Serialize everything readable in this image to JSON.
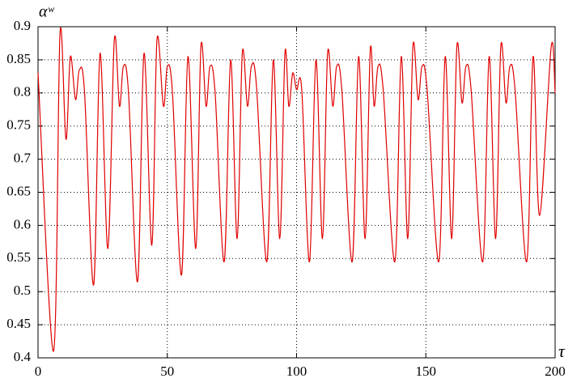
{
  "chart_data": {
    "type": "line",
    "x_label": "τ",
    "y_label": "αʷ",
    "xlim": [
      0,
      200
    ],
    "ylim": [
      0.4,
      0.9
    ],
    "xticks": [
      0,
      50,
      100,
      150,
      200
    ],
    "yticks": [
      0.4,
      0.45,
      0.5,
      0.55,
      0.6,
      0.65,
      0.7,
      0.75,
      0.8,
      0.85,
      0.9
    ],
    "grid": true,
    "x": [
      0,
      6,
      8.5,
      10.8,
      12.5,
      14.5,
      16,
      18,
      21.5,
      24,
      27,
      29.5,
      31.5,
      33,
      35,
      38.5,
      41,
      44,
      46,
      48.5,
      50,
      52,
      55.5,
      58,
      61,
      63,
      65,
      66.5,
      68.5,
      72,
      74.5,
      77,
      79,
      81,
      82.5,
      84.5,
      88.5,
      91,
      93.5,
      95.5,
      97,
      98.5,
      100,
      102,
      105,
      107.5,
      110,
      112,
      114,
      115.5,
      117.5,
      121.5,
      124,
      126.5,
      128.5,
      130,
      131.5,
      133.5,
      138,
      140.5,
      143,
      145,
      147,
      148.5,
      150.5,
      155,
      157.5,
      160,
      162,
      164,
      165.5,
      167.5,
      172,
      174.5,
      177,
      179,
      181,
      182.5,
      184.5,
      189,
      191.5,
      194,
      198.5,
      200
    ],
    "series": [
      {
        "name": "alpha-w",
        "color": "#e00000",
        "values": [
          0.83,
          0.41,
          0.89,
          0.73,
          0.855,
          0.79,
          0.835,
          0.8,
          0.51,
          0.86,
          0.565,
          0.88,
          0.78,
          0.84,
          0.8,
          0.515,
          0.86,
          0.57,
          0.88,
          0.78,
          0.84,
          0.8,
          0.525,
          0.855,
          0.565,
          0.87,
          0.78,
          0.84,
          0.8,
          0.545,
          0.85,
          0.58,
          0.86,
          0.78,
          0.84,
          0.81,
          0.545,
          0.85,
          0.58,
          0.86,
          0.78,
          0.83,
          0.805,
          0.805,
          0.545,
          0.85,
          0.58,
          0.86,
          0.78,
          0.84,
          0.805,
          0.545,
          0.855,
          0.58,
          0.865,
          0.78,
          0.84,
          0.805,
          0.545,
          0.855,
          0.58,
          0.87,
          0.79,
          0.84,
          0.805,
          0.545,
          0.855,
          0.58,
          0.87,
          0.785,
          0.84,
          0.805,
          0.545,
          0.855,
          0.58,
          0.87,
          0.785,
          0.84,
          0.805,
          0.545,
          0.855,
          0.615,
          0.87,
          0.8
        ]
      }
    ]
  }
}
